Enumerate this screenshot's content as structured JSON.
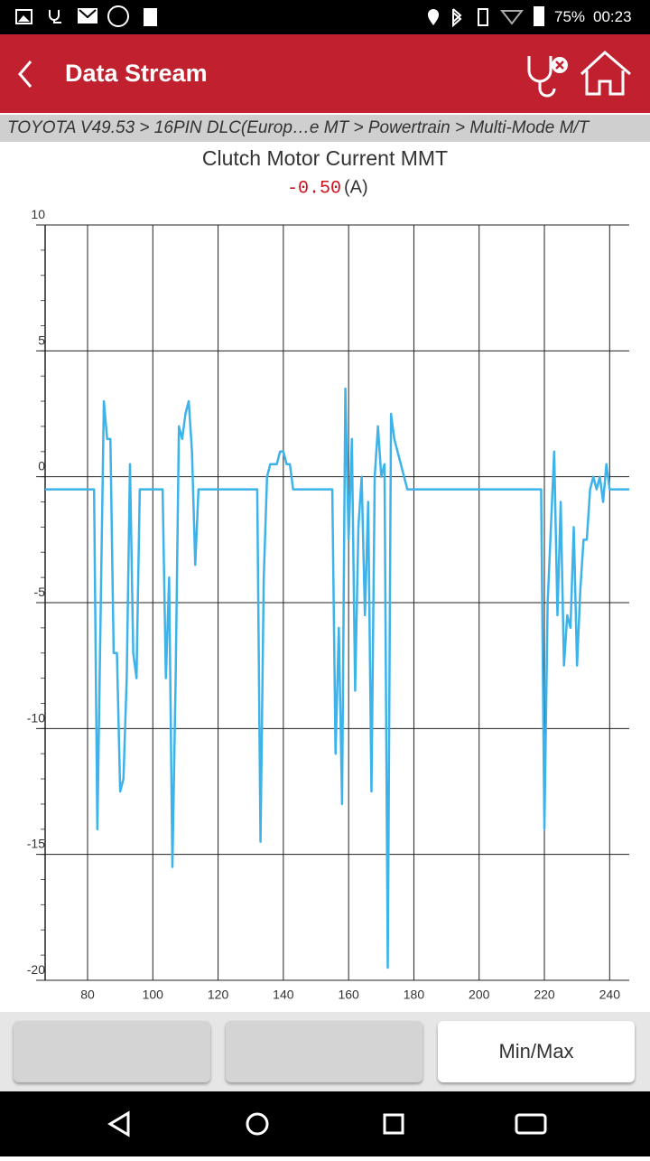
{
  "status_bar": {
    "battery": "75%",
    "time": "00:23"
  },
  "header": {
    "title": "Data Stream"
  },
  "breadcrumb": "TOYOTA V49.53 > 16PIN DLC(Europ…e MT > Powertrain > Multi-Mode M/T",
  "chart_data": {
    "type": "line",
    "title": "Clutch Motor Current MMT",
    "current_value": "-0.50",
    "unit": "(A)",
    "color": "#3db3ea",
    "x": [
      67,
      82,
      83,
      85,
      86,
      87,
      88,
      89,
      90,
      91,
      92,
      93,
      94,
      95,
      96,
      103,
      104,
      105,
      106,
      107,
      108,
      109,
      110,
      111,
      112,
      113,
      114,
      132,
      133,
      134,
      135,
      136,
      138,
      139,
      140,
      141,
      142,
      143,
      155,
      156,
      157,
      158,
      159,
      160,
      161,
      162,
      163,
      164,
      165,
      166,
      167,
      168,
      169,
      170,
      171,
      172,
      173,
      174,
      178,
      219,
      220,
      221,
      222,
      223,
      224,
      225,
      226,
      227,
      228,
      229,
      230,
      231,
      232,
      233,
      234,
      235,
      236,
      237,
      238,
      239,
      240,
      246
    ],
    "values": [
      -0.5,
      -0.5,
      -14,
      3,
      1.5,
      1.5,
      -7,
      -7,
      -12.5,
      -12,
      -8,
      0.5,
      -7,
      -8,
      -0.5,
      -0.5,
      -8,
      -4,
      -15.5,
      -8,
      2,
      1.5,
      2.5,
      3,
      1,
      -3.5,
      -0.5,
      -0.5,
      -14.5,
      -4,
      0,
      0.5,
      0.5,
      1,
      1,
      0.5,
      0.5,
      -0.5,
      -0.5,
      -11,
      -6,
      -13,
      3.5,
      -2.5,
      1.5,
      -8.5,
      -2,
      0,
      -5.5,
      -1,
      -12.5,
      0,
      2,
      0,
      0.5,
      -19.5,
      2.5,
      1.5,
      -0.5,
      -0.5,
      -14,
      -5,
      -2,
      1,
      -5.5,
      -1,
      -7.5,
      -5.5,
      -6,
      -2,
      -7.5,
      -4.5,
      -2.5,
      -2.5,
      -0.5,
      0,
      -0.5,
      0,
      -1,
      0.5,
      -0.5,
      -0.5
    ],
    "xlim": [
      67,
      246
    ],
    "xticks": [
      80,
      100,
      120,
      140,
      160,
      180,
      200,
      220,
      240
    ],
    "ylim": [
      -20,
      10
    ],
    "yticks": [
      10,
      5,
      0,
      -5,
      -10,
      -15,
      -20
    ],
    "grid": true
  },
  "buttons": [
    "Min/Max"
  ]
}
